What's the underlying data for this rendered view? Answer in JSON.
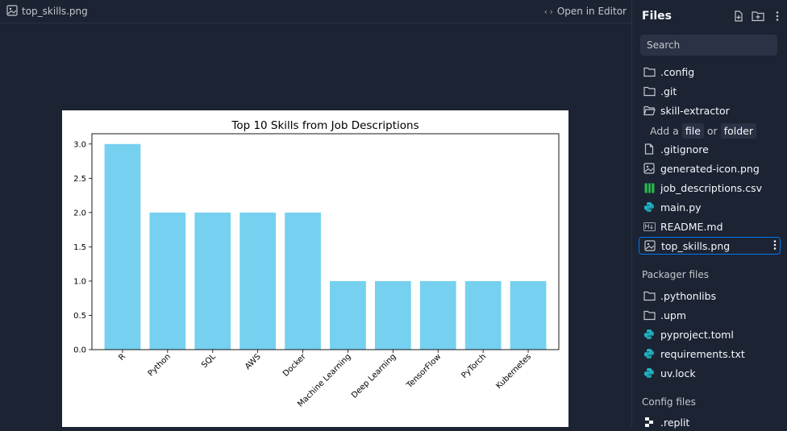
{
  "preview": {
    "filename": "top_skills.png",
    "open_editor": "Open in Editor"
  },
  "files": {
    "title": "Files",
    "search_placeholder": "Search",
    "items": [
      {
        "label": ".config",
        "icon": "folder-icon"
      },
      {
        "label": ".git",
        "icon": "folder-icon"
      },
      {
        "label": "skill-extractor",
        "icon": "folder-open-icon"
      }
    ],
    "add_text": {
      "prefix": "Add a",
      "file": "file",
      "or": "or",
      "folder": "folder"
    },
    "files_list": [
      {
        "label": ".gitignore",
        "icon": "file-icon"
      },
      {
        "label": "generated-icon.png",
        "icon": "image-icon"
      },
      {
        "label": "job_descriptions.csv",
        "icon": "csv-icon"
      },
      {
        "label": "main.py",
        "icon": "python-icon"
      },
      {
        "label": "README.md",
        "icon": "markdown-icon"
      },
      {
        "label": "top_skills.png",
        "icon": "image-icon"
      }
    ],
    "packager_label": "Packager files",
    "packager": [
      {
        "label": ".pythonlibs",
        "icon": "folder-icon"
      },
      {
        "label": ".upm",
        "icon": "folder-icon"
      },
      {
        "label": "pyproject.toml",
        "icon": "python-icon"
      },
      {
        "label": "requirements.txt",
        "icon": "python-icon"
      },
      {
        "label": "uv.lock",
        "icon": "python-icon"
      }
    ],
    "config_label": "Config files",
    "config": [
      {
        "label": ".replit",
        "icon": "replit-icon"
      }
    ]
  },
  "colors": {
    "bar": "#76d0ef",
    "accent": "#0079f2",
    "python": "#1fb6c6",
    "csv": "#2bb24c"
  },
  "chart_data": {
    "type": "bar",
    "title": "Top 10 Skills from Job Descriptions",
    "categories": [
      "R",
      "Python",
      "SQL",
      "AWS",
      "Docker",
      "Machine Learning",
      "Deep Learning",
      "TensorFlow",
      "PyTorch",
      "Kubernetes"
    ],
    "values": [
      3,
      2,
      2,
      2,
      2,
      1,
      1,
      1,
      1,
      1
    ],
    "ylim": [
      0,
      3.15
    ],
    "yticks": [
      "0.0",
      "0.5",
      "1.0",
      "1.5",
      "2.0",
      "2.5",
      "3.0"
    ],
    "xlabel": "",
    "ylabel": ""
  }
}
